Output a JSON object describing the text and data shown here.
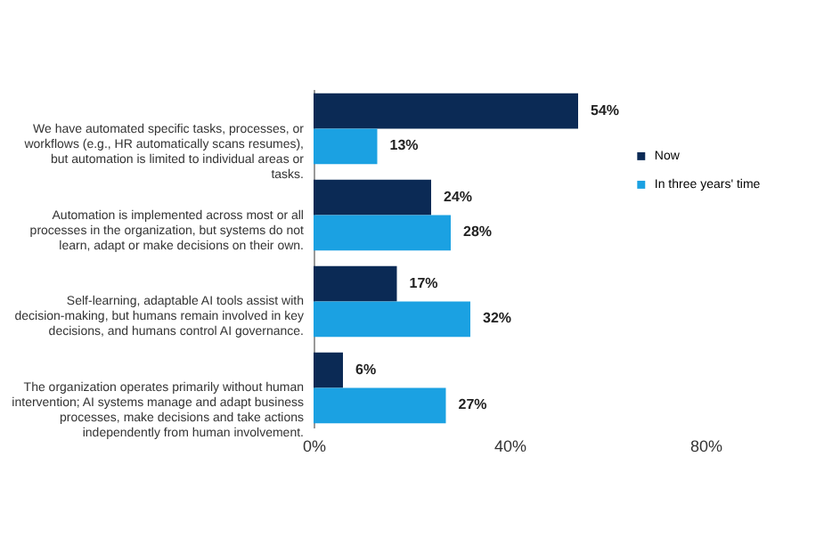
{
  "chart_data": {
    "type": "bar",
    "orientation": "horizontal",
    "categories": [
      "We have automated specific tasks, processes, or workflows (e.g., HR automatically scans resumes), but automation is limited to individual areas or tasks.",
      "Automation is implemented across most or all processes in the organization, but systems do not learn, adapt or make decisions on their own.",
      "Self-learning, adaptable AI tools assist with decision-making, but humans remain involved in key decisions, and humans control AI governance.",
      "The organization operates primarily without human intervention; AI systems manage and adapt business processes, make decisions and take actions independently from human involvement."
    ],
    "series": [
      {
        "name": "Now",
        "color": "#0b2a55",
        "values": [
          54,
          24,
          17,
          6
        ],
        "value_labels": [
          "54%",
          "24%",
          "17%",
          "6%"
        ]
      },
      {
        "name": "In three years' time",
        "color": "#1ba1e2",
        "values": [
          13,
          28,
          32,
          27
        ],
        "value_labels": [
          "13%",
          "28%",
          "32%",
          "27%"
        ]
      }
    ],
    "xlim": [
      0,
      80
    ],
    "xticks": [
      {
        "value": 0,
        "label": "0%"
      },
      {
        "value": 40,
        "label": "40%"
      },
      {
        "value": 80,
        "label": "80%"
      }
    ],
    "grid": false,
    "legend": "top right"
  }
}
